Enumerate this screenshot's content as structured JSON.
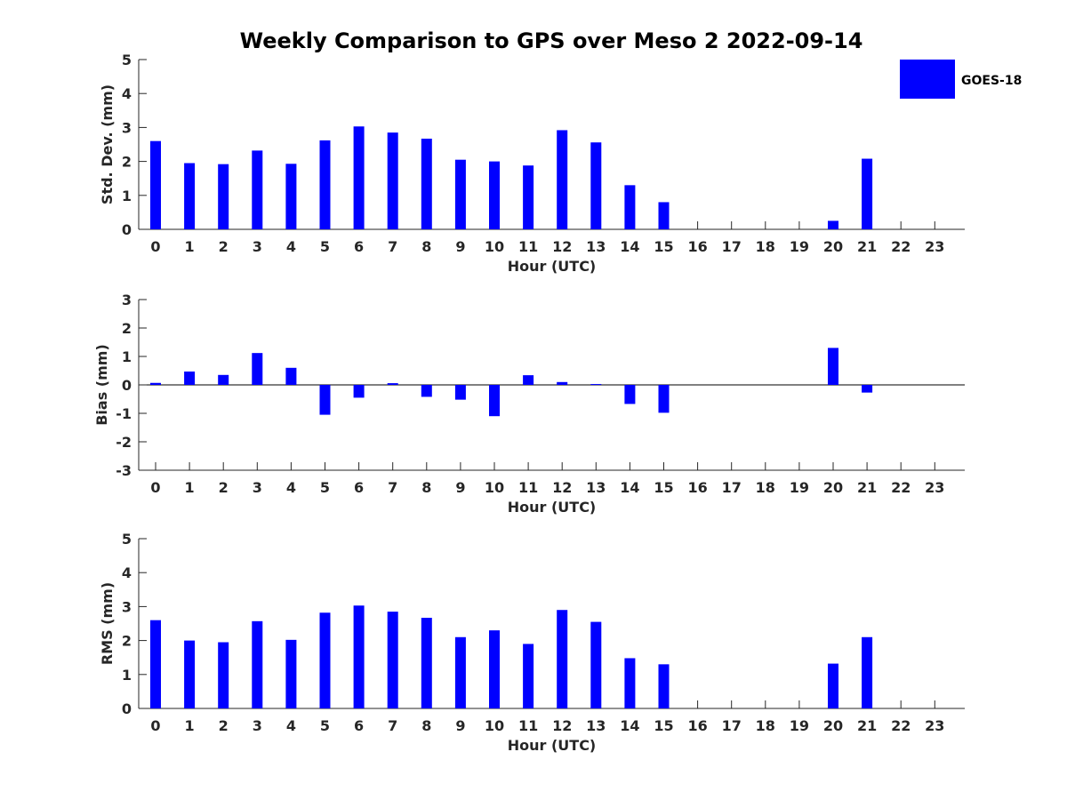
{
  "figure": {
    "title": "Weekly Comparison to GPS over Meso 2 2022-09-14"
  },
  "legend": {
    "label": "GOES-18",
    "color": "#0000ff"
  },
  "chart_data": [
    {
      "type": "bar",
      "title": "Weekly Comparison to GPS over Meso 2 2022-09-14",
      "series": [
        {
          "name": "GOES-18",
          "values": [
            2.6,
            1.95,
            1.92,
            2.32,
            1.93,
            2.62,
            3.03,
            2.85,
            2.67,
            2.05,
            2.0,
            1.88,
            2.92,
            2.56,
            1.3,
            0.8,
            null,
            null,
            null,
            null,
            0.25,
            2.08,
            null,
            null
          ]
        }
      ],
      "categories": [
        "0",
        "1",
        "2",
        "3",
        "4",
        "5",
        "6",
        "7",
        "8",
        "9",
        "10",
        "11",
        "12",
        "13",
        "14",
        "15",
        "16",
        "17",
        "18",
        "19",
        "20",
        "21",
        "22",
        "23"
      ],
      "xlabel": "Hour (UTC)",
      "ylabel": "Std. Dev. (mm)",
      "ylim": [
        0,
        5
      ],
      "yticks": [
        0,
        1,
        2,
        3,
        4,
        5
      ]
    },
    {
      "type": "bar",
      "title": "",
      "series": [
        {
          "name": "GOES-18",
          "values": [
            0.07,
            0.47,
            0.35,
            1.12,
            0.6,
            -1.05,
            -0.45,
            0.06,
            -0.42,
            -0.52,
            -1.1,
            0.34,
            0.1,
            0.03,
            -0.67,
            -0.98,
            null,
            null,
            null,
            null,
            1.3,
            -0.27,
            null,
            null
          ]
        }
      ],
      "categories": [
        "0",
        "1",
        "2",
        "3",
        "4",
        "5",
        "6",
        "7",
        "8",
        "9",
        "10",
        "11",
        "12",
        "13",
        "14",
        "15",
        "16",
        "17",
        "18",
        "19",
        "20",
        "21",
        "22",
        "23"
      ],
      "xlabel": "Hour (UTC)",
      "ylabel": "Bias (mm)",
      "ylim": [
        -3,
        3
      ],
      "yticks": [
        -3,
        -2,
        -1,
        0,
        1,
        2,
        3
      ]
    },
    {
      "type": "bar",
      "title": "",
      "series": [
        {
          "name": "GOES-18",
          "values": [
            2.6,
            2.0,
            1.95,
            2.57,
            2.02,
            2.82,
            3.03,
            2.85,
            2.67,
            2.1,
            2.3,
            1.9,
            2.9,
            2.55,
            1.48,
            1.3,
            null,
            null,
            null,
            null,
            1.32,
            2.1,
            null,
            null
          ]
        }
      ],
      "categories": [
        "0",
        "1",
        "2",
        "3",
        "4",
        "5",
        "6",
        "7",
        "8",
        "9",
        "10",
        "11",
        "12",
        "13",
        "14",
        "15",
        "16",
        "17",
        "18",
        "19",
        "20",
        "21",
        "22",
        "23"
      ],
      "xlabel": "Hour (UTC)",
      "ylabel": "RMS (mm)",
      "ylim": [
        0,
        5
      ],
      "yticks": [
        0,
        1,
        2,
        3,
        4,
        5
      ]
    }
  ]
}
